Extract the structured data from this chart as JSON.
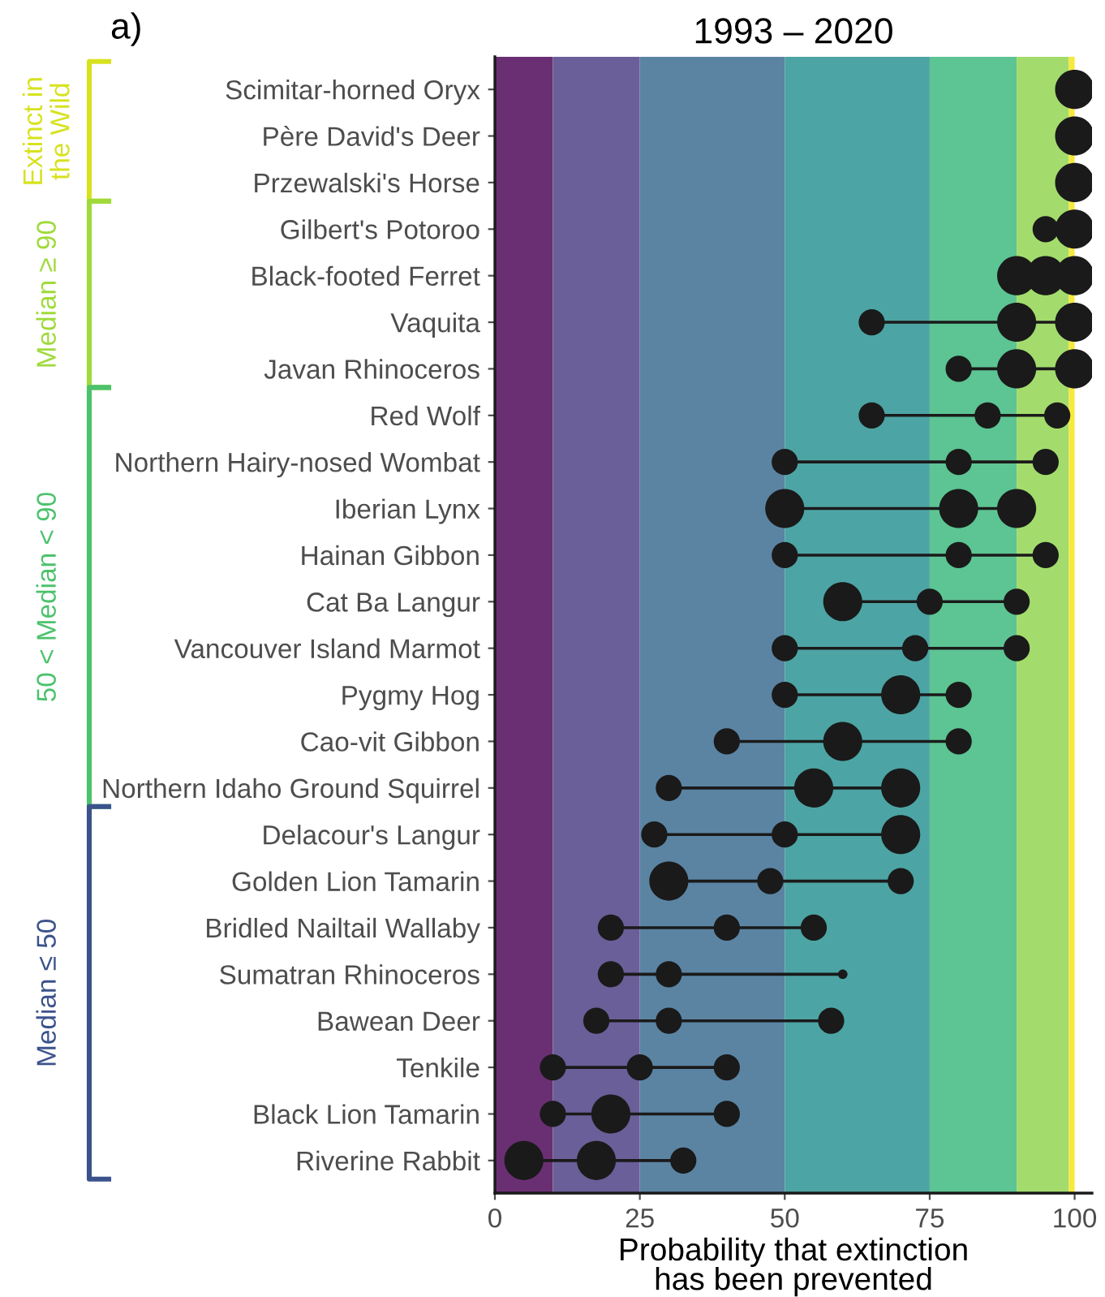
{
  "chart_data": {
    "type": "bubble",
    "orientation": "horizontal",
    "title": "1993 – 2020",
    "xlabel": "Probability that extinction\nhas been prevented",
    "annotations": [
      "a)",
      "Extinct in\nthe Wild",
      "Median ≥ 90",
      "50 < Median < 90",
      "Median ≤ 50"
    ],
    "categories": [
      "Scimitar-horned Oryx",
      "Père David's Deer",
      "Przewalski's Horse",
      "Gilbert's Potoroo",
      "Black-footed Ferret",
      "Vaquita",
      "Javan Rhinoceros",
      "Red Wolf",
      "Northern Hairy-nosed Wombat",
      "Iberian Lynx",
      "Hainan Gibbon",
      "Cat Ba Langur",
      "Vancouver Island Marmot",
      "Pygmy Hog",
      "Cao-vit Gibbon",
      "Northern Idaho Ground Squirrel",
      "Delacour's Langur",
      "Golden Lion Tamarin",
      "Bridled Nailtail Wallaby",
      "Sumatran Rhinoceros",
      "Bawean Deer",
      "Tenkile",
      "Black Lion Tamarin",
      "Riverine Rabbit"
    ],
    "series": [
      {
        "color": "#1a1a1a",
        "values": [
          null,
          null,
          null,
          95,
          90,
          65,
          80,
          65,
          50,
          50,
          50,
          60,
          50,
          50,
          40,
          30,
          27.5,
          30,
          20,
          20,
          17.5,
          10,
          10,
          5
        ],
        "sizes": [
          null,
          null,
          null,
          0.45,
          1,
          0.45,
          0.45,
          0.45,
          0.45,
          1,
          0.45,
          1,
          0.45,
          0.45,
          0.45,
          0.45,
          0.45,
          1,
          0.45,
          0.45,
          0.45,
          0.45,
          0.45,
          1
        ]
      },
      {
        "color": "#1a1a1a",
        "values": [
          100,
          100,
          100,
          100,
          95,
          90,
          90,
          85,
          80,
          80,
          80,
          75,
          72.5,
          70,
          60,
          55,
          50,
          47.5,
          40,
          30,
          30,
          25,
          20,
          17.5
        ],
        "sizes": [
          1,
          1,
          1,
          1,
          1,
          1,
          1,
          0.45,
          0.45,
          1,
          0.45,
          0.45,
          0.45,
          1,
          1,
          1,
          0.45,
          0.45,
          0.45,
          0.45,
          0.45,
          0.45,
          1,
          1
        ]
      },
      {
        "color": "#1a1a1a",
        "values": [
          null,
          null,
          null,
          null,
          100,
          100,
          100,
          97,
          95,
          90,
          95,
          90,
          90,
          80,
          80,
          70,
          70,
          70,
          55,
          60,
          58,
          40,
          40,
          32.5
        ],
        "sizes": [
          null,
          null,
          null,
          null,
          1,
          1,
          1,
          0.45,
          0.45,
          1,
          0.45,
          0.45,
          0.45,
          0.45,
          0.45,
          1,
          1,
          0.45,
          0.45,
          0.06,
          0.45,
          0.45,
          0.45,
          0.45
        ]
      }
    ],
    "xlim": [
      0,
      103
    ],
    "xticks": [
      0,
      25,
      50,
      75,
      100
    ],
    "marker": "circle",
    "grid": false,
    "legend": false,
    "bands": [
      {
        "axis": "x",
        "from": 0,
        "to": 10,
        "color": "#6a2f73"
      },
      {
        "axis": "x",
        "from": 10,
        "to": 25,
        "color": "#6a5f98"
      },
      {
        "axis": "x",
        "from": 25,
        "to": 50,
        "color": "#5b84a3"
      },
      {
        "axis": "x",
        "from": 50,
        "to": 75,
        "color": "#4da4a4"
      },
      {
        "axis": "x",
        "from": 75,
        "to": 90,
        "color": "#5dc493"
      },
      {
        "axis": "x",
        "from": 90,
        "to": 99,
        "color": "#a3dc6c"
      },
      {
        "axis": "x",
        "from": 99,
        "to": 100,
        "color": "#f6e93c"
      }
    ]
  }
}
